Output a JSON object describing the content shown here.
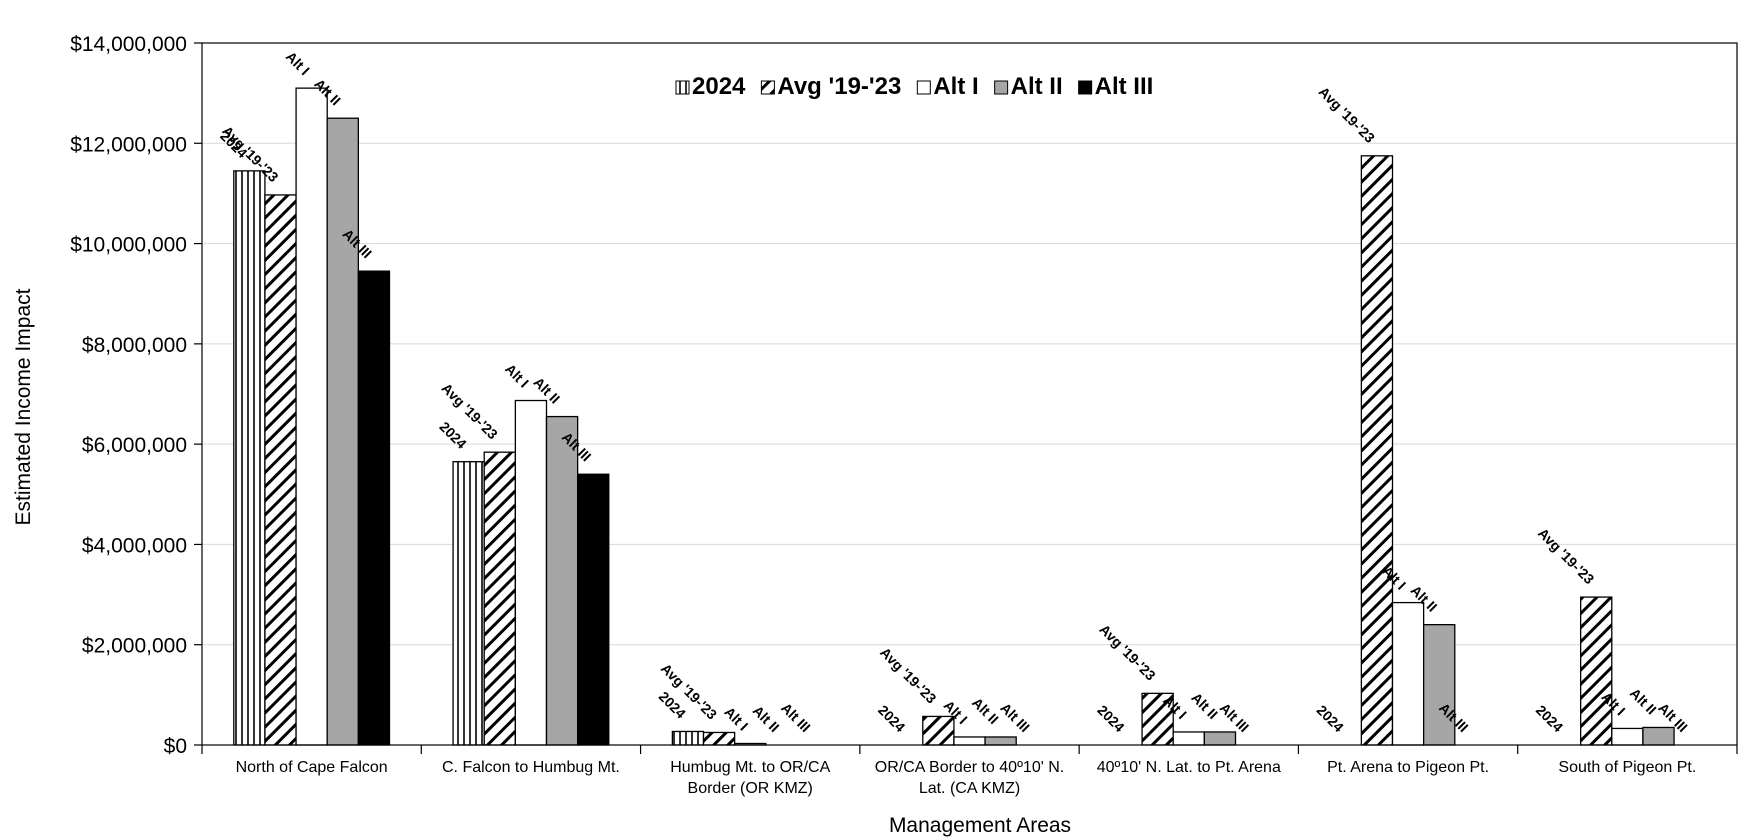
{
  "chart_data": {
    "type": "bar",
    "xlabel": "Management Areas",
    "ylabel": "Estimated Income Impact",
    "ylim": [
      0,
      14000000
    ],
    "yticks": [
      0,
      2000000,
      4000000,
      6000000,
      8000000,
      10000000,
      12000000,
      14000000
    ],
    "ytick_labels": [
      "$0",
      "$2,000,000",
      "$4,000,000",
      "$6,000,000",
      "$8,000,000",
      "$10,000,000",
      "$12,000,000",
      "$14,000,000"
    ],
    "grid": true,
    "legend_position": "top-center",
    "categories": [
      [
        "North of Cape Falcon"
      ],
      [
        "C. Falcon to Humbug Mt."
      ],
      [
        "Humbug Mt. to OR/CA",
        "Border (OR KMZ)"
      ],
      [
        "OR/CA Border to 40º10' N.",
        "Lat. (CA KMZ)"
      ],
      [
        "40º10' N. Lat. to Pt. Arena"
      ],
      [
        "Pt. Arena to Pigeon Pt."
      ],
      [
        "South of Pigeon Pt."
      ]
    ],
    "series": [
      {
        "name": "2024",
        "label": "2024",
        "pattern": "vertical",
        "values": [
          11450000,
          5650000,
          270000,
          0,
          0,
          0,
          0
        ]
      },
      {
        "name": "Avg '19-'23",
        "label": "Avg '19-'23",
        "pattern": "diagonal",
        "values": [
          10970000,
          5840000,
          250000,
          570000,
          1030000,
          11750000,
          2950000
        ]
      },
      {
        "name": "Alt I",
        "label": "Alt I",
        "pattern": "white",
        "values": [
          13100000,
          6870000,
          30000,
          160000,
          260000,
          2840000,
          330000
        ]
      },
      {
        "name": "Alt II",
        "label": "Alt II",
        "pattern": "gray",
        "values": [
          12500000,
          6550000,
          0,
          160000,
          260000,
          2400000,
          350000
        ]
      },
      {
        "name": "Alt III",
        "label": "Alt III",
        "pattern": "black",
        "values": [
          9450000,
          5400000,
          0,
          0,
          0,
          0,
          0
        ]
      }
    ]
  },
  "colors": {
    "gray_fill": "#a6a6a6",
    "black_fill": "#000000",
    "white_fill": "#ffffff",
    "grid": "#d9d9d9",
    "axis": "#000000"
  }
}
